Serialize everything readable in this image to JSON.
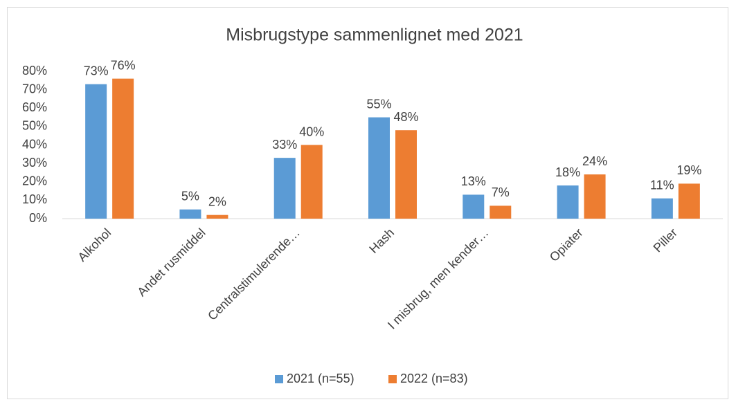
{
  "chart_data": {
    "type": "bar",
    "title": "Misbrugstype sammenlignet med 2021",
    "categories": [
      "Alkohol",
      "Andet rusmiddel",
      "Centralstimulerende…",
      "Hash",
      "I misbrug, men kender…",
      "Opiater",
      "Piller"
    ],
    "series": [
      {
        "name": "2021 (n=55)",
        "color": "#5b9bd5",
        "values": [
          73,
          5,
          33,
          55,
          13,
          18,
          11
        ],
        "value_labels": [
          "73%",
          "5%",
          "33%",
          "55%",
          "13%",
          "18%",
          "11%"
        ]
      },
      {
        "name": "2022 (n=83)",
        "color": "#ed7d31",
        "values": [
          76,
          2,
          40,
          48,
          7,
          24,
          19
        ],
        "value_labels": [
          "76%",
          "2%",
          "40%",
          "48%",
          "7%",
          "24%",
          "19%"
        ]
      }
    ],
    "ylim": [
      0,
      80
    ],
    "yticks": [
      {
        "value": 0,
        "label": "0%"
      },
      {
        "value": 10,
        "label": "10%"
      },
      {
        "value": 20,
        "label": "20%"
      },
      {
        "value": 30,
        "label": "30%"
      },
      {
        "value": 40,
        "label": "40%"
      },
      {
        "value": 50,
        "label": "50%"
      },
      {
        "value": 60,
        "label": "60%"
      },
      {
        "value": 70,
        "label": "70%"
      },
      {
        "value": 80,
        "label": "80%"
      }
    ],
    "grid": false,
    "legend": "bottom"
  }
}
